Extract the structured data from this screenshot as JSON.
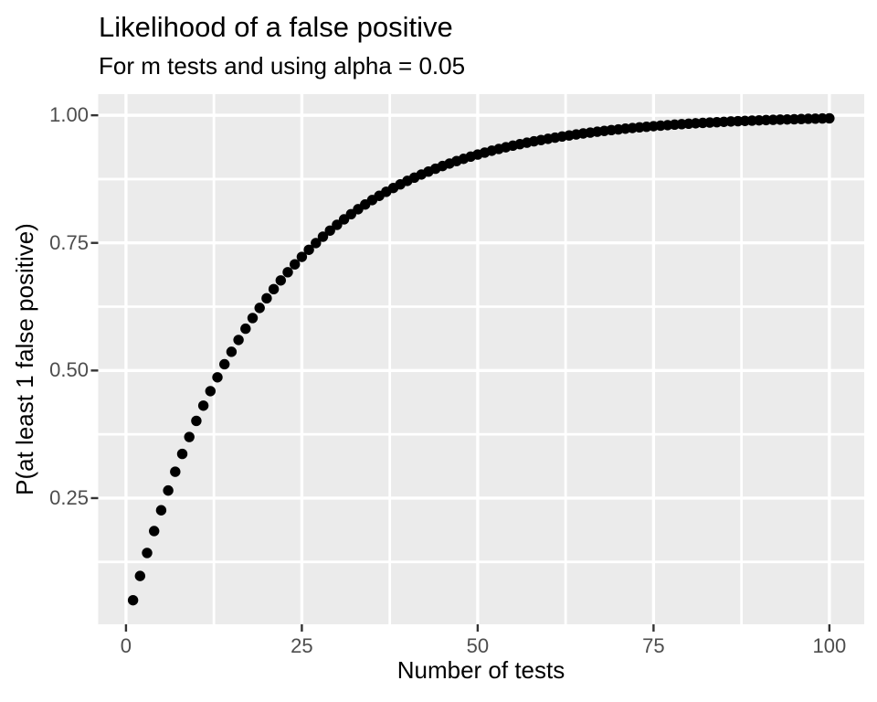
{
  "chart_data": {
    "type": "scatter",
    "title": "Likelihood of a false positive",
    "subtitle": "For m tests and using alpha = 0.05",
    "xlabel": "Number of tests",
    "ylabel": "P(at least 1 false positive)",
    "x": [
      1,
      2,
      3,
      4,
      5,
      6,
      7,
      8,
      9,
      10,
      11,
      12,
      13,
      14,
      15,
      16,
      17,
      18,
      19,
      20,
      21,
      22,
      23,
      24,
      25,
      26,
      27,
      28,
      29,
      30,
      31,
      32,
      33,
      34,
      35,
      36,
      37,
      38,
      39,
      40,
      41,
      42,
      43,
      44,
      45,
      46,
      47,
      48,
      49,
      50,
      51,
      52,
      53,
      54,
      55,
      56,
      57,
      58,
      59,
      60,
      61,
      62,
      63,
      64,
      65,
      66,
      67,
      68,
      69,
      70,
      71,
      72,
      73,
      74,
      75,
      76,
      77,
      78,
      79,
      80,
      81,
      82,
      83,
      84,
      85,
      86,
      87,
      88,
      89,
      90,
      91,
      92,
      93,
      94,
      95,
      96,
      97,
      98,
      99,
      100
    ],
    "y": [
      0.05,
      0.0975,
      0.1426,
      0.1855,
      0.2262,
      0.2649,
      0.3017,
      0.3366,
      0.3698,
      0.4013,
      0.4312,
      0.4596,
      0.4867,
      0.5123,
      0.5367,
      0.5599,
      0.5819,
      0.6028,
      0.6226,
      0.6415,
      0.6594,
      0.6765,
      0.6926,
      0.708,
      0.7226,
      0.7365,
      0.7497,
      0.7622,
      0.7741,
      0.7854,
      0.7961,
      0.8063,
      0.816,
      0.8252,
      0.8339,
      0.8422,
      0.8501,
      0.8576,
      0.8647,
      0.8715,
      0.8779,
      0.884,
      0.8898,
      0.8953,
      0.9006,
      0.9055,
      0.9103,
      0.9147,
      0.919,
      0.9231,
      0.9269,
      0.9306,
      0.934,
      0.9373,
      0.9405,
      0.9434,
      0.9463,
      0.949,
      0.9515,
      0.9539,
      0.9562,
      0.9584,
      0.9605,
      0.9625,
      0.9644,
      0.9661,
      0.9678,
      0.9694,
      0.971,
      0.9724,
      0.9738,
      0.9751,
      0.9764,
      0.9775,
      0.9787,
      0.9797,
      0.9807,
      0.9817,
      0.9826,
      0.9835,
      0.9843,
      0.9851,
      0.9858,
      0.9865,
      0.9872,
      0.9879,
      0.9885,
      0.989,
      0.9896,
      0.9901,
      0.9906,
      0.9911,
      0.9915,
      0.9919,
      0.9923,
      0.9927,
      0.9931,
      0.9934,
      0.9938,
      0.9941
    ],
    "xlim": [
      -3.95,
      104.95
    ],
    "ylim": [
      0.0028,
      1.0414
    ],
    "x_axis": {
      "label": "Number of tests",
      "breaks": [
        0,
        25,
        50,
        75,
        100
      ],
      "tick_labels": [
        "0",
        "25",
        "50",
        "75",
        "100"
      ],
      "minor_breaks": [
        12.5,
        37.5,
        62.5,
        87.5
      ]
    },
    "y_axis": {
      "label": "P(at least 1 false positive)",
      "breaks": [
        0.25,
        0.5,
        0.75,
        1.0
      ],
      "tick_labels": [
        "0.25",
        "0.50",
        "0.75",
        "1.00"
      ],
      "minor_breaks": [
        0.125,
        0.375,
        0.625,
        0.875
      ]
    },
    "grid": true,
    "legend": "none",
    "colors": {
      "background": "#FFFFFF",
      "panel_background": "#EBEBEB",
      "grid": "#FFFFFF",
      "point": "#000000",
      "tick_mark": "#333333",
      "tick_label": "#4D4D4D",
      "text": "#000000"
    }
  }
}
